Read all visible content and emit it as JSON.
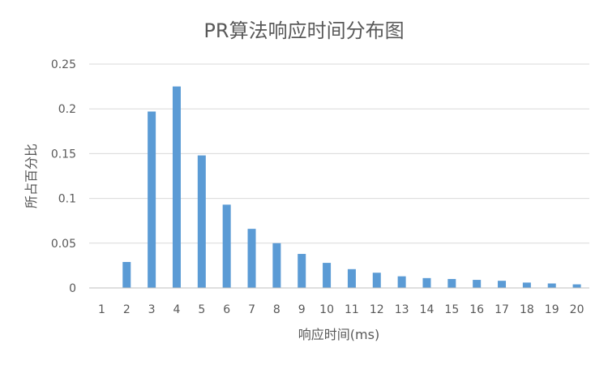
{
  "chart_data": {
    "type": "bar",
    "title": "PR算法响应时间分布图",
    "xlabel": "响应时间(ms)",
    "ylabel": "所占百分比",
    "categories": [
      "1",
      "2",
      "3",
      "4",
      "5",
      "6",
      "7",
      "8",
      "9",
      "10",
      "11",
      "12",
      "13",
      "14",
      "15",
      "16",
      "17",
      "18",
      "19",
      "20"
    ],
    "values": [
      0,
      0.029,
      0.197,
      0.225,
      0.148,
      0.093,
      0.066,
      0.05,
      0.038,
      0.028,
      0.021,
      0.017,
      0.013,
      0.011,
      0.01,
      0.009,
      0.008,
      0.006,
      0.005,
      0.004
    ],
    "ylim": [
      0,
      0.25
    ],
    "yticks": [
      "0",
      "0.05",
      "0.1",
      "0.15",
      "0.2",
      "0.25"
    ],
    "grid": true,
    "legend": "none",
    "bar_color": "#5b9bd5"
  }
}
